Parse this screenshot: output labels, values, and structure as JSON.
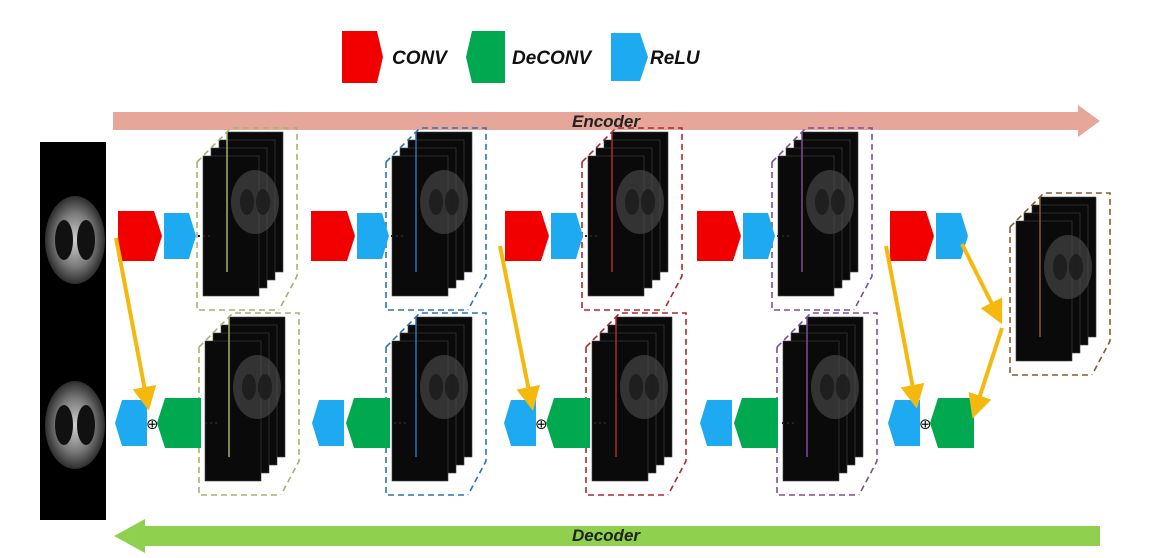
{
  "legend": {
    "items": [
      {
        "label": "CONV",
        "color": "#f20000"
      },
      {
        "label": "DeCONV",
        "color": "#00a84f"
      },
      {
        "label": "ReLU",
        "color": "#1eaaf1"
      }
    ]
  },
  "encoder": {
    "label": "Encoder",
    "color": "#e6a69a"
  },
  "decoder": {
    "label": "Decoder",
    "color": "#8fd14f"
  },
  "skip_symbol": "⊕",
  "colors": {
    "skip_arrow": "#f5b80f",
    "stage_frames": [
      "#a3b36c",
      "#2d73b8",
      "#b0272d",
      "#7d4e9e",
      "#8b5a2b"
    ]
  }
}
